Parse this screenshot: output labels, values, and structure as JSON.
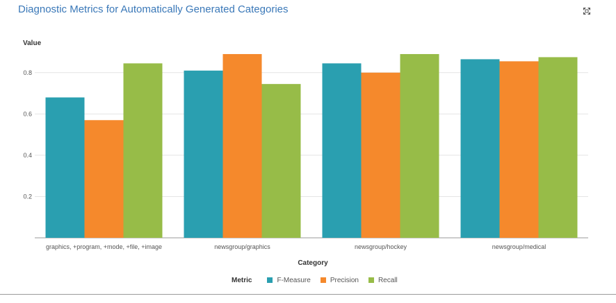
{
  "title": "Diagnostic Metrics for Automatically Generated Categories",
  "maximize_icon": "maximize-icon",
  "colors": {
    "title": "#3a78b8",
    "f_measure": "#2a9fb0",
    "precision": "#f5892c",
    "recall": "#97bc48",
    "grid": "#e4e4e4",
    "axis": "#9a9a9a"
  },
  "legend": {
    "title": "Metric",
    "items": [
      "F-Measure",
      "Precision",
      "Recall"
    ]
  },
  "chart_data": {
    "type": "bar",
    "title": "Diagnostic Metrics for Automatically Generated Categories",
    "xlabel": "Category",
    "ylabel": "Value",
    "ylim": [
      0,
      0.9
    ],
    "yticks": [
      "0.2",
      "0.4",
      "0.6",
      "0.8"
    ],
    "grid": true,
    "legend_placement": "bottom",
    "categories": [
      "graphics, +program, +mode, +file, +image",
      "newsgroup/graphics",
      "newsgroup/hockey",
      "newsgroup/medical"
    ],
    "series": [
      {
        "name": "F-Measure",
        "color": "#2a9fb0",
        "values": [
          0.68,
          0.81,
          0.845,
          0.865
        ]
      },
      {
        "name": "Precision",
        "color": "#f5892c",
        "values": [
          0.57,
          0.89,
          0.8,
          0.855
        ]
      },
      {
        "name": "Recall",
        "color": "#97bc48",
        "values": [
          0.845,
          0.745,
          0.89,
          0.875
        ]
      }
    ]
  }
}
